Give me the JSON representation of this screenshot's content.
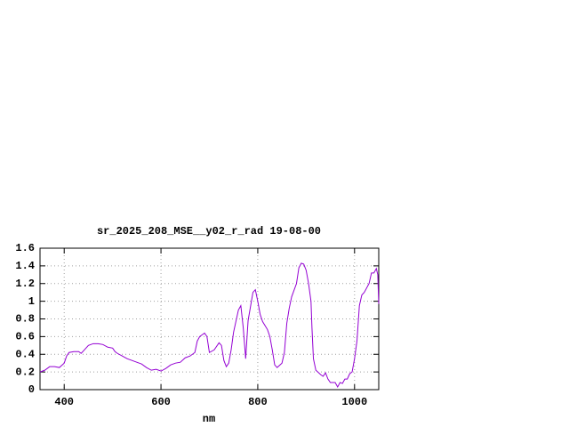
{
  "chart_data": {
    "type": "line",
    "title": "sr_2025_208_MSE__y02_r_rad 19-08-00",
    "x_label": "nm",
    "x": [
      350,
      360,
      370,
      380,
      390,
      400,
      405,
      410,
      420,
      430,
      435,
      440,
      450,
      460,
      470,
      480,
      490,
      500,
      505,
      510,
      520,
      530,
      540,
      550,
      560,
      570,
      580,
      590,
      600,
      610,
      620,
      630,
      640,
      650,
      660,
      670,
      675,
      680,
      690,
      695,
      700,
      710,
      720,
      725,
      730,
      735,
      740,
      745,
      750,
      760,
      765,
      770,
      775,
      780,
      790,
      795,
      800,
      805,
      810,
      820,
      825,
      830,
      835,
      840,
      850,
      855,
      860,
      865,
      870,
      880,
      885,
      890,
      895,
      900,
      905,
      910,
      912,
      915,
      920,
      930,
      935,
      940,
      945,
      950,
      960,
      965,
      970,
      975,
      980,
      985,
      990,
      995,
      1000,
      1005,
      1010,
      1015,
      1020,
      1030,
      1035,
      1040,
      1045,
      1048,
      1050
    ],
    "series": [
      {
        "color": "#9400d3",
        "values": [
          0.2,
          0.22,
          0.26,
          0.26,
          0.25,
          0.3,
          0.38,
          0.42,
          0.43,
          0.43,
          0.41,
          0.44,
          0.5,
          0.52,
          0.52,
          0.51,
          0.48,
          0.47,
          0.43,
          0.41,
          0.38,
          0.35,
          0.33,
          0.31,
          0.29,
          0.25,
          0.22,
          0.23,
          0.21,
          0.24,
          0.28,
          0.3,
          0.31,
          0.36,
          0.38,
          0.42,
          0.55,
          0.6,
          0.64,
          0.6,
          0.42,
          0.45,
          0.53,
          0.5,
          0.33,
          0.26,
          0.3,
          0.45,
          0.65,
          0.9,
          0.95,
          0.7,
          0.35,
          0.78,
          1.1,
          1.13,
          1.0,
          0.85,
          0.77,
          0.68,
          0.6,
          0.45,
          0.28,
          0.25,
          0.3,
          0.42,
          0.75,
          0.92,
          1.05,
          1.2,
          1.38,
          1.43,
          1.42,
          1.35,
          1.2,
          1.0,
          0.7,
          0.35,
          0.22,
          0.17,
          0.15,
          0.19,
          0.12,
          0.08,
          0.08,
          0.03,
          0.08,
          0.07,
          0.12,
          0.12,
          0.18,
          0.2,
          0.35,
          0.55,
          0.95,
          1.07,
          1.1,
          1.2,
          1.32,
          1.32,
          1.37,
          1.3,
          0.97
        ]
      }
    ],
    "xlim": [
      350,
      1050
    ],
    "xticks": [
      400,
      600,
      800,
      1000
    ],
    "ylim": [
      0,
      1.6
    ],
    "yticks": [
      0,
      0.2,
      0.4,
      0.6,
      0.8,
      1,
      1.2,
      1.4,
      1.6
    ],
    "grid": true
  }
}
